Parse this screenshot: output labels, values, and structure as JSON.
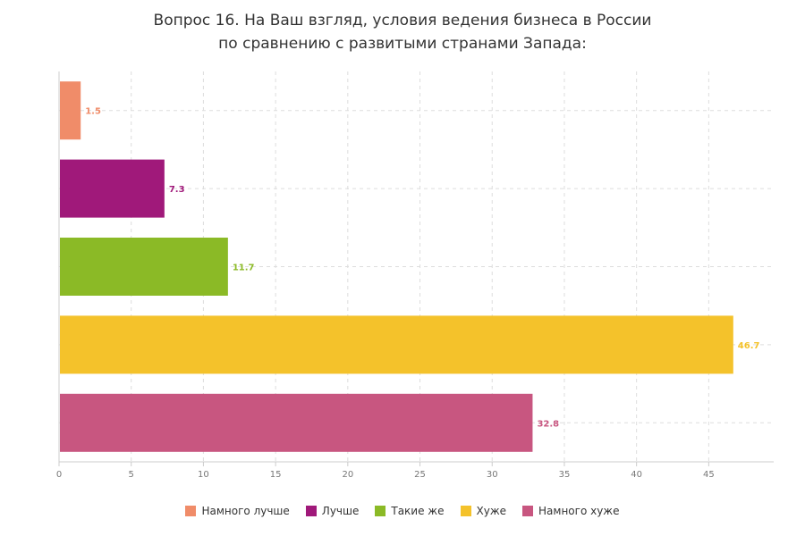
{
  "chart_data": {
    "type": "bar",
    "orientation": "horizontal",
    "title_lines": [
      "Вопрос 16. На Ваш взгляд, условия ведения бизнеса в России",
      "по сравнению с развитыми странами Запада:"
    ],
    "categories": [
      "Намного лучше",
      "Лучше",
      "Такие же",
      "Хуже",
      "Намного хуже"
    ],
    "values": [
      1.5,
      7.3,
      11.7,
      46.7,
      32.8
    ],
    "value_labels": [
      "1.5",
      "7.3",
      "11.7",
      "46.7",
      "32.8"
    ],
    "colors": [
      "#f08c69",
      "#a0197a",
      "#8bba26",
      "#f4c22b",
      "#c85680"
    ],
    "xlim": [
      0,
      49.5
    ],
    "x_ticks": [
      0,
      5,
      10,
      15,
      20,
      25,
      30,
      35,
      40,
      45
    ],
    "x_tick_labels": [
      "0",
      "5",
      "10",
      "15",
      "20",
      "25",
      "30",
      "35",
      "40",
      "45"
    ],
    "grid": true,
    "legend_position": "bottom"
  }
}
